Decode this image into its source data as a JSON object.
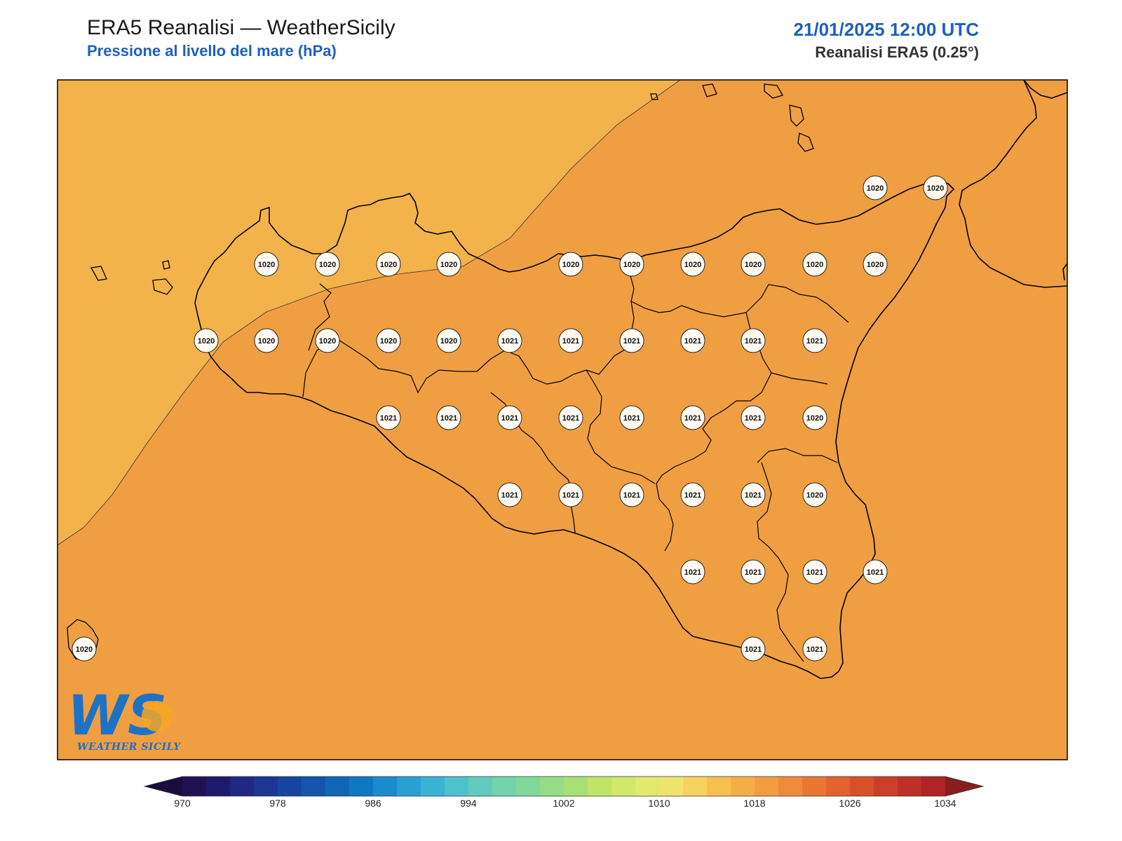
{
  "header": {
    "title": "ERA5 Reanalisi — WeatherSicily",
    "subtitle": "Pressione al livello del mare (hPa)",
    "datetime": "21/01/2025 12:00 UTC",
    "source": "Reanalisi ERA5 (0.25°)"
  },
  "logo": {
    "text": "WEATHER SICILY",
    "letters": "WS"
  },
  "colors": {
    "land_fill": "#F09E42",
    "low_zone_fill": "#F3B24A",
    "coast": "#000000",
    "label_bg": "#FFFBF3"
  },
  "pressure_labels": [
    {
      "v": "1020"
    },
    {
      "v": "1020"
    },
    {
      "v": "1020"
    },
    {
      "v": "1020"
    },
    {
      "v": "1020"
    },
    {
      "v": "1020"
    },
    {
      "v": "1020"
    },
    {
      "v": "1020"
    },
    {
      "v": "1020"
    },
    {
      "v": "1020"
    },
    {
      "v": "1020"
    },
    {
      "v": "1020"
    },
    {
      "v": "1020"
    },
    {
      "v": "1020"
    },
    {
      "v": "1020"
    },
    {
      "v": "1020"
    },
    {
      "v": "1020"
    },
    {
      "v": "1021"
    },
    {
      "v": "1021"
    },
    {
      "v": "1021"
    },
    {
      "v": "1021"
    },
    {
      "v": "1021"
    },
    {
      "v": "1021"
    },
    {
      "v": "1021"
    },
    {
      "v": "1021"
    },
    {
      "v": "1021"
    },
    {
      "v": "1021"
    },
    {
      "v": "1021"
    },
    {
      "v": "1021"
    },
    {
      "v": "1021"
    },
    {
      "v": "1020"
    },
    {
      "v": "1021"
    },
    {
      "v": "1021"
    },
    {
      "v": "1021"
    },
    {
      "v": "1021"
    },
    {
      "v": "1021"
    },
    {
      "v": "1020"
    },
    {
      "v": "1021"
    },
    {
      "v": "1021"
    },
    {
      "v": "1021"
    },
    {
      "v": "1021"
    },
    {
      "v": "1021"
    },
    {
      "v": "1021"
    },
    {
      "v": "1020"
    }
  ],
  "colorbar": {
    "ticks": [
      "970",
      "978",
      "986",
      "994",
      "1002",
      "1010",
      "1018",
      "1026",
      "1034"
    ],
    "colors": [
      "#221150",
      "#1f1a6b",
      "#202883",
      "#1d3692",
      "#17459e",
      "#1355aa",
      "#0f66b6",
      "#0f78c2",
      "#1a8bcb",
      "#2a9fd3",
      "#3ab3d3",
      "#4ec2cc",
      "#62cbbd",
      "#72d3ac",
      "#82d898",
      "#95dc86",
      "#a9e074",
      "#bfe468",
      "#d2e86a",
      "#e1ea6e",
      "#f1e46e",
      "#f6d260",
      "#f6c050",
      "#f4ae48",
      "#f19d42",
      "#ee8b3a",
      "#e97733",
      "#e2632e",
      "#d7502a",
      "#ca3f27",
      "#bd3028",
      "#b02428"
    ],
    "under_color": "#1a0d3d",
    "over_color": "#8a1e1e"
  }
}
